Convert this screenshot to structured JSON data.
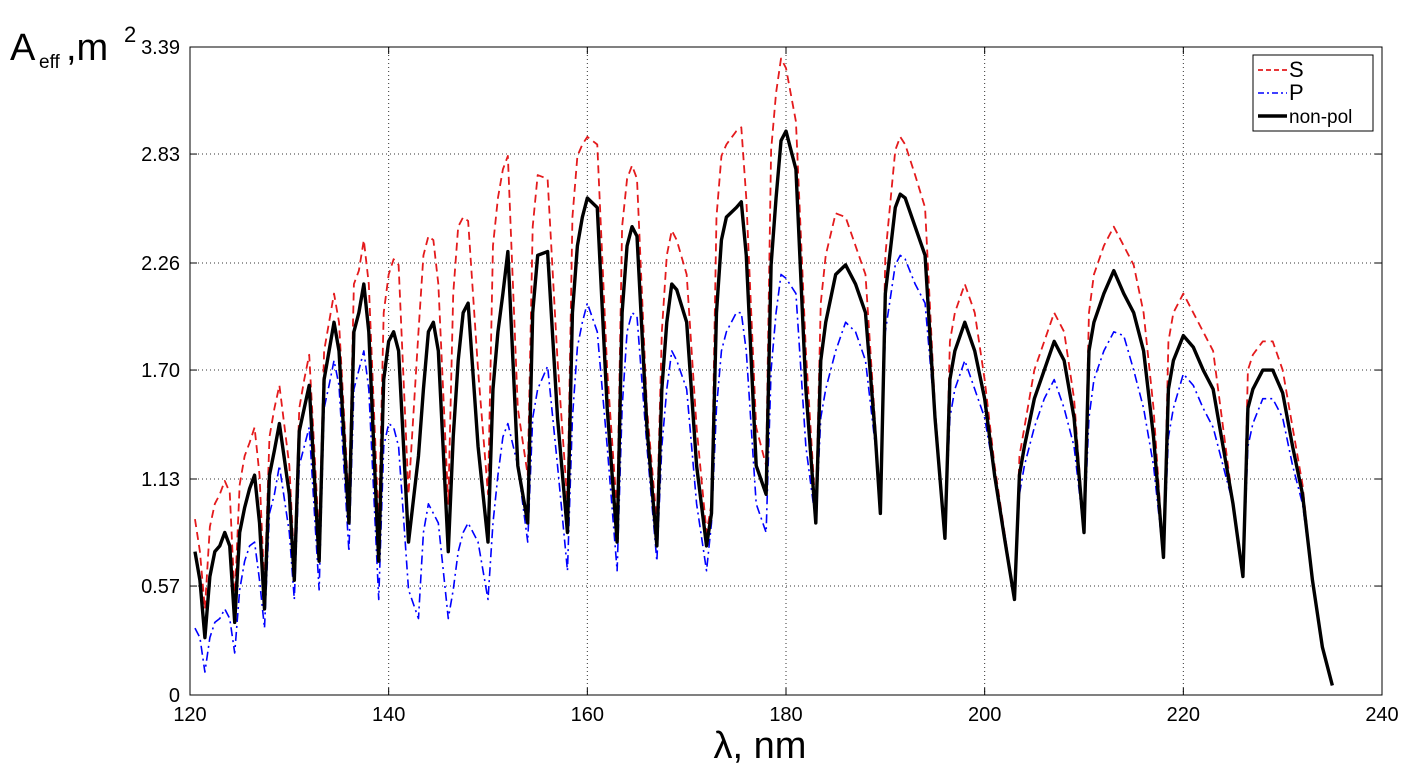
{
  "chart_data": {
    "type": "line",
    "title": "",
    "xlabel": "λ, nm",
    "ylabel": {
      "main": "A",
      "sub": "eff",
      "unit": ",m",
      "sup": "2"
    },
    "xlim": [
      120,
      240
    ],
    "ylim": [
      0,
      3.39
    ],
    "xticks": [
      120,
      140,
      160,
      180,
      200,
      220,
      240
    ],
    "yticks": [
      0,
      0.57,
      1.13,
      1.7,
      2.26,
      2.83,
      3.39
    ],
    "ytick_labels": [
      "0",
      "0.57",
      "1.13",
      "1.70",
      "2.26",
      "2.83",
      "3.39"
    ],
    "grid": true,
    "legend_position": "top-right",
    "colors": {
      "S": "#e41a1c",
      "P": "#0000ff",
      "non-pol": "#000000"
    },
    "series": [
      {
        "name": "S",
        "style": "dashed",
        "color": "#e41a1c",
        "x": [
          120.5,
          121.0,
          121.5,
          122.0,
          122.5,
          123.0,
          123.5,
          124.0,
          124.5,
          125.0,
          125.5,
          126.0,
          126.5,
          127.0,
          127.5,
          128.0,
          128.5,
          129.0,
          130.0,
          130.5,
          131.0,
          131.5,
          132.0,
          133.0,
          133.5,
          134.0,
          134.5,
          135.0,
          136.0,
          136.5,
          137.0,
          137.5,
          138.0,
          139.0,
          139.5,
          140.0,
          140.5,
          141.0,
          142.0,
          143.0,
          143.5,
          144.0,
          144.5,
          145.0,
          146.0,
          146.5,
          147.0,
          147.5,
          148.0,
          149.0,
          150.0,
          150.5,
          151.0,
          151.5,
          152.0,
          153.0,
          154.0,
          154.5,
          155.0,
          156.0,
          157.0,
          158.0,
          158.5,
          159.0,
          159.5,
          160.0,
          161.0,
          162.0,
          163.0,
          163.5,
          164.0,
          164.5,
          165.0,
          166.0,
          167.0,
          167.5,
          168.0,
          168.5,
          169.0,
          170.0,
          171.0,
          172.0,
          172.5,
          173.0,
          173.5,
          174.0,
          175.0,
          175.5,
          176.0,
          177.0,
          178.0,
          178.5,
          179.0,
          179.5,
          180.0,
          181.0,
          182.0,
          183.0,
          183.5,
          184.0,
          185.0,
          186.0,
          187.0,
          188.0,
          189.0,
          189.5,
          190.0,
          191.0,
          191.5,
          192.0,
          193.0,
          194.0,
          195.0,
          196.0,
          196.5,
          197.0,
          198.0,
          199.0,
          200.0,
          201.0,
          202.0,
          203.0,
          203.5,
          204.0,
          205.0,
          206.0,
          207.0,
          208.0,
          209.0,
          210.0,
          210.5,
          211.0,
          212.0,
          213.0,
          214.0,
          215.0,
          216.0,
          217.0,
          218.0,
          218.5,
          219.0,
          220.0,
          221.0,
          222.0,
          223.0,
          224.0,
          225.0,
          226.0,
          226.5,
          227.0,
          228.0,
          229.0,
          230.0,
          231.0,
          232.0,
          233.0,
          234.0,
          235.0
        ],
        "y": [
          0.92,
          0.75,
          0.45,
          0.88,
          1.0,
          1.05,
          1.12,
          1.06,
          0.5,
          1.1,
          1.25,
          1.32,
          1.4,
          1.15,
          0.55,
          1.35,
          1.5,
          1.62,
          1.2,
          0.68,
          1.5,
          1.65,
          1.78,
          0.82,
          1.8,
          1.95,
          2.1,
          1.95,
          1.0,
          2.15,
          2.22,
          2.38,
          2.15,
          0.88,
          2.0,
          2.2,
          2.28,
          2.25,
          1.05,
          1.9,
          2.3,
          2.4,
          2.38,
          2.15,
          1.0,
          2.1,
          2.45,
          2.5,
          2.48,
          1.7,
          1.05,
          2.35,
          2.6,
          2.75,
          2.82,
          1.5,
          1.15,
          2.45,
          2.72,
          2.7,
          1.75,
          1.0,
          2.5,
          2.82,
          2.88,
          2.92,
          2.88,
          1.7,
          0.95,
          2.45,
          2.7,
          2.77,
          2.7,
          1.5,
          0.9,
          1.9,
          2.3,
          2.43,
          2.38,
          2.2,
          1.4,
          0.85,
          1.0,
          2.5,
          2.82,
          2.88,
          2.95,
          2.97,
          2.6,
          1.4,
          1.2,
          2.85,
          3.15,
          3.33,
          3.28,
          3.0,
          1.8,
          0.95,
          2.05,
          2.3,
          2.52,
          2.5,
          2.35,
          2.2,
          1.4,
          0.95,
          2.3,
          2.85,
          2.92,
          2.88,
          2.72,
          2.55,
          1.5,
          0.82,
          1.85,
          2.0,
          2.15,
          2.0,
          1.65,
          1.2,
          0.85,
          0.5,
          1.25,
          1.4,
          1.7,
          1.85,
          2.0,
          1.9,
          1.55,
          0.85,
          2.0,
          2.2,
          2.35,
          2.45,
          2.35,
          2.25,
          2.0,
          1.5,
          0.72,
          1.85,
          2.0,
          2.1,
          2.0,
          1.9,
          1.8,
          1.4,
          1.0,
          0.62,
          1.7,
          1.78,
          1.85,
          1.85,
          1.7,
          1.4,
          1.1,
          0.6,
          0.25,
          0.05
        ]
      },
      {
        "name": "P",
        "style": "dashdot",
        "color": "#0000ff",
        "x": [
          120.5,
          121.0,
          121.5,
          122.0,
          122.5,
          123.0,
          123.5,
          124.0,
          124.5,
          125.0,
          125.5,
          126.0,
          126.5,
          127.0,
          127.5,
          128.0,
          128.5,
          129.0,
          130.0,
          130.5,
          131.0,
          131.5,
          132.0,
          133.0,
          133.5,
          134.0,
          134.5,
          135.0,
          136.0,
          136.5,
          137.0,
          137.5,
          138.0,
          139.0,
          139.5,
          140.0,
          140.5,
          141.0,
          142.0,
          143.0,
          143.5,
          144.0,
          144.5,
          145.0,
          146.0,
          146.5,
          147.0,
          147.5,
          148.0,
          149.0,
          150.0,
          150.5,
          151.0,
          151.5,
          152.0,
          153.0,
          154.0,
          154.5,
          155.0,
          156.0,
          157.0,
          158.0,
          158.5,
          159.0,
          159.5,
          160.0,
          161.0,
          162.0,
          163.0,
          163.5,
          164.0,
          164.5,
          165.0,
          166.0,
          167.0,
          167.5,
          168.0,
          168.5,
          169.0,
          170.0,
          171.0,
          172.0,
          172.5,
          173.0,
          173.5,
          174.0,
          175.0,
          175.5,
          176.0,
          177.0,
          178.0,
          178.5,
          179.0,
          179.5,
          180.0,
          181.0,
          182.0,
          183.0,
          183.5,
          184.0,
          185.0,
          186.0,
          187.0,
          188.0,
          189.0,
          189.5,
          190.0,
          191.0,
          191.5,
          192.0,
          193.0,
          194.0,
          195.0,
          196.0,
          196.5,
          197.0,
          198.0,
          199.0,
          200.0,
          201.0,
          202.0,
          203.0,
          203.5,
          204.0,
          205.0,
          206.0,
          207.0,
          208.0,
          209.0,
          210.0,
          210.5,
          211.0,
          212.0,
          213.0,
          214.0,
          215.0,
          216.0,
          217.0,
          218.0,
          218.5,
          219.0,
          220.0,
          221.0,
          222.0,
          223.0,
          224.0,
          225.0,
          226.0,
          226.5,
          227.0,
          228.0,
          229.0,
          230.0,
          231.0,
          232.0,
          233.0,
          234.0,
          235.0
        ],
        "y": [
          0.35,
          0.3,
          0.12,
          0.3,
          0.38,
          0.4,
          0.45,
          0.4,
          0.22,
          0.55,
          0.7,
          0.78,
          0.8,
          0.6,
          0.35,
          0.95,
          1.05,
          1.2,
          0.85,
          0.5,
          1.2,
          1.3,
          1.4,
          0.55,
          1.5,
          1.62,
          1.75,
          1.62,
          0.75,
          1.6,
          1.7,
          1.8,
          1.6,
          0.5,
          1.3,
          1.42,
          1.4,
          1.3,
          0.55,
          0.4,
          0.85,
          1.0,
          0.95,
          0.9,
          0.4,
          0.55,
          0.75,
          0.85,
          0.9,
          0.8,
          0.5,
          0.9,
          1.15,
          1.35,
          1.42,
          1.2,
          0.8,
          1.45,
          1.6,
          1.72,
          1.2,
          0.65,
          1.45,
          1.82,
          1.95,
          2.05,
          1.9,
          1.3,
          0.65,
          1.5,
          1.9,
          2.0,
          1.98,
          1.3,
          0.7,
          1.3,
          1.6,
          1.8,
          1.75,
          1.6,
          1.0,
          0.65,
          0.9,
          1.5,
          1.8,
          1.9,
          2.0,
          2.0,
          1.8,
          1.0,
          0.85,
          1.7,
          2.0,
          2.2,
          2.18,
          2.1,
          1.3,
          0.9,
          1.45,
          1.6,
          1.8,
          1.95,
          1.9,
          1.75,
          1.3,
          1.0,
          1.9,
          2.25,
          2.3,
          2.28,
          2.15,
          2.05,
          1.45,
          0.85,
          1.45,
          1.6,
          1.75,
          1.6,
          1.45,
          1.15,
          0.85,
          0.5,
          1.05,
          1.2,
          1.4,
          1.55,
          1.65,
          1.5,
          1.3,
          0.85,
          1.45,
          1.65,
          1.8,
          1.9,
          1.88,
          1.7,
          1.5,
          1.2,
          0.72,
          1.35,
          1.5,
          1.68,
          1.62,
          1.5,
          1.4,
          1.2,
          1.0,
          0.62,
          1.3,
          1.42,
          1.55,
          1.55,
          1.45,
          1.2,
          1.0,
          0.6,
          0.25,
          0.05
        ]
      },
      {
        "name": "non-pol",
        "style": "solid",
        "color": "#000000",
        "x": [
          120.5,
          121.0,
          121.5,
          122.0,
          122.5,
          123.0,
          123.5,
          124.0,
          124.5,
          125.0,
          125.5,
          126.0,
          126.5,
          127.0,
          127.5,
          128.0,
          128.5,
          129.0,
          130.0,
          130.5,
          131.0,
          131.5,
          132.0,
          133.0,
          133.5,
          134.0,
          134.5,
          135.0,
          136.0,
          136.5,
          137.0,
          137.5,
          138.0,
          139.0,
          139.5,
          140.0,
          140.5,
          141.0,
          142.0,
          143.0,
          143.5,
          144.0,
          144.5,
          145.0,
          146.0,
          146.5,
          147.0,
          147.5,
          148.0,
          149.0,
          150.0,
          150.5,
          151.0,
          151.5,
          152.0,
          153.0,
          154.0,
          154.5,
          155.0,
          156.0,
          157.0,
          158.0,
          158.5,
          159.0,
          159.5,
          160.0,
          161.0,
          162.0,
          163.0,
          163.5,
          164.0,
          164.5,
          165.0,
          166.0,
          167.0,
          167.5,
          168.0,
          168.5,
          169.0,
          170.0,
          171.0,
          172.0,
          172.5,
          173.0,
          173.5,
          174.0,
          175.0,
          175.5,
          176.0,
          177.0,
          178.0,
          178.5,
          179.0,
          179.5,
          180.0,
          181.0,
          182.0,
          183.0,
          183.5,
          184.0,
          185.0,
          186.0,
          187.0,
          188.0,
          189.0,
          189.5,
          190.0,
          191.0,
          191.5,
          192.0,
          193.0,
          194.0,
          195.0,
          196.0,
          196.5,
          197.0,
          198.0,
          199.0,
          200.0,
          201.0,
          202.0,
          203.0,
          203.5,
          204.0,
          205.0,
          206.0,
          207.0,
          208.0,
          209.0,
          210.0,
          210.5,
          211.0,
          212.0,
          213.0,
          214.0,
          215.0,
          216.0,
          217.0,
          218.0,
          218.5,
          219.0,
          220.0,
          221.0,
          222.0,
          223.0,
          224.0,
          225.0,
          226.0,
          226.5,
          227.0,
          228.0,
          229.0,
          230.0,
          231.0,
          232.0,
          233.0,
          234.0,
          235.0
        ],
        "y": [
          0.75,
          0.6,
          0.3,
          0.62,
          0.75,
          0.78,
          0.85,
          0.78,
          0.38,
          0.85,
          0.98,
          1.08,
          1.15,
          0.9,
          0.45,
          1.15,
          1.28,
          1.42,
          1.05,
          0.6,
          1.38,
          1.5,
          1.62,
          0.7,
          1.65,
          1.8,
          1.95,
          1.8,
          0.9,
          1.9,
          2.0,
          2.15,
          1.9,
          0.7,
          1.65,
          1.85,
          1.9,
          1.8,
          0.8,
          1.25,
          1.6,
          1.9,
          1.95,
          1.8,
          0.75,
          1.35,
          1.75,
          2.0,
          2.05,
          1.3,
          0.8,
          1.6,
          1.9,
          2.1,
          2.32,
          1.2,
          0.9,
          2.0,
          2.3,
          2.32,
          1.45,
          0.85,
          2.0,
          2.35,
          2.5,
          2.6,
          2.55,
          1.5,
          0.8,
          2.0,
          2.35,
          2.45,
          2.4,
          1.4,
          0.78,
          1.6,
          1.95,
          2.15,
          2.12,
          1.95,
          1.2,
          0.78,
          0.95,
          2.0,
          2.38,
          2.5,
          2.55,
          2.58,
          2.3,
          1.2,
          1.05,
          2.25,
          2.6,
          2.9,
          2.95,
          2.75,
          1.6,
          0.9,
          1.75,
          1.95,
          2.2,
          2.25,
          2.15,
          2.0,
          1.35,
          0.95,
          2.1,
          2.55,
          2.62,
          2.6,
          2.45,
          2.3,
          1.45,
          0.82,
          1.65,
          1.8,
          1.95,
          1.8,
          1.55,
          1.15,
          0.82,
          0.5,
          1.15,
          1.3,
          1.55,
          1.7,
          1.85,
          1.75,
          1.45,
          0.85,
          1.8,
          1.95,
          2.1,
          2.22,
          2.1,
          2.0,
          1.8,
          1.35,
          0.72,
          1.6,
          1.75,
          1.88,
          1.82,
          1.7,
          1.6,
          1.3,
          1.0,
          0.62,
          1.5,
          1.6,
          1.7,
          1.7,
          1.58,
          1.3,
          1.05,
          0.6,
          0.25,
          0.05
        ]
      }
    ]
  }
}
